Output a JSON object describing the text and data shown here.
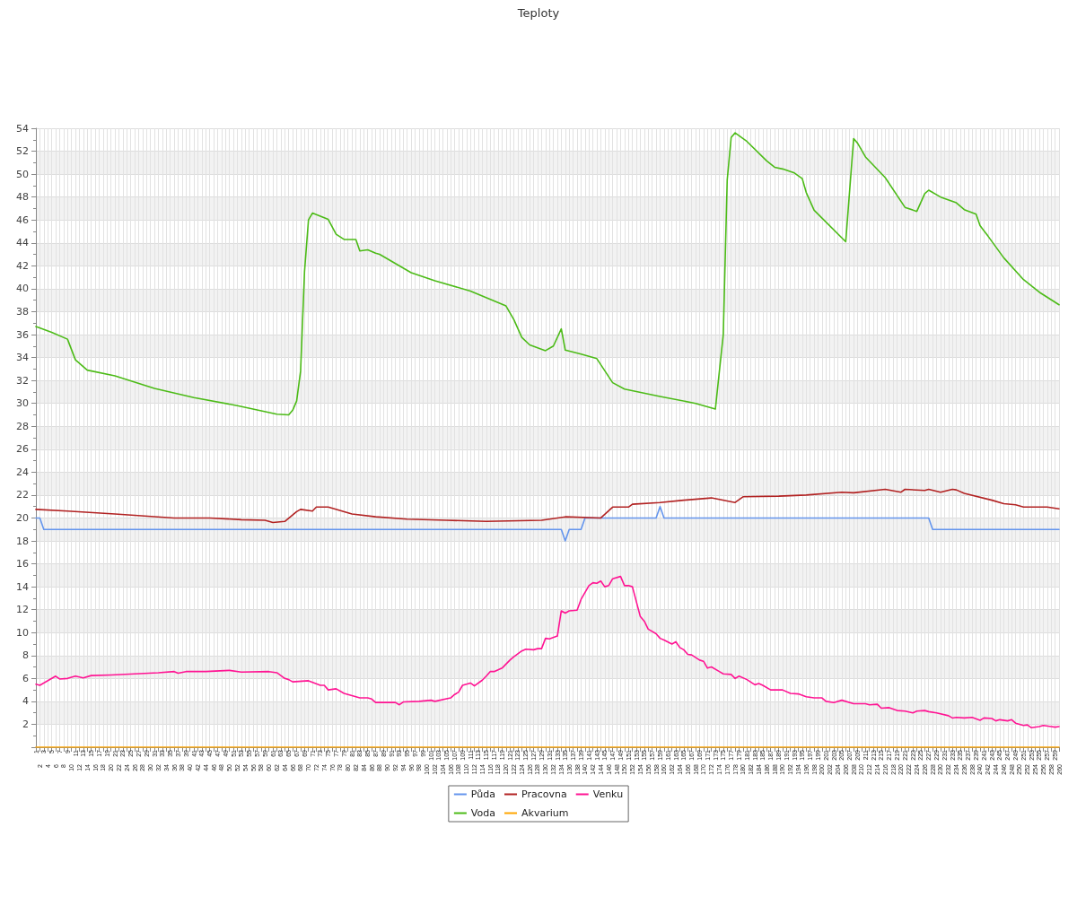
{
  "chart_data": {
    "type": "line",
    "title": "Teploty",
    "categories": [
      "1",
      "2",
      "3",
      "4",
      "5",
      "6",
      "7",
      "8",
      "9",
      "10",
      "11",
      "12",
      "13",
      "14",
      "15",
      "16",
      "17",
      "18",
      "19",
      "20",
      "21",
      "22",
      "23",
      "24",
      "25",
      "26",
      "27",
      "28",
      "29",
      "30",
      "31",
      "32",
      "33",
      "34",
      "35",
      "36",
      "37",
      "38",
      "39",
      "40",
      "41",
      "42",
      "43",
      "44",
      "45",
      "46",
      "47",
      "48",
      "49",
      "50",
      "51",
      "52",
      "53",
      "54",
      "55",
      "56",
      "57",
      "58",
      "59",
      "60",
      "61",
      "62",
      "63",
      "64",
      "65",
      "66",
      "67",
      "68",
      "69",
      "70",
      "71",
      "72",
      "73",
      "74",
      "75",
      "76",
      "77",
      "78",
      "79",
      "80",
      "81",
      "82",
      "83",
      "84",
      "85",
      "86",
      "87",
      "88",
      "89",
      "90",
      "91",
      "92",
      "93",
      "94",
      "95",
      "96",
      "97",
      "98",
      "99",
      "100",
      "101",
      "102",
      "103",
      "104",
      "105",
      "106",
      "107",
      "108",
      "109",
      "110",
      "111",
      "112",
      "113",
      "114",
      "115",
      "116",
      "117",
      "118",
      "119",
      "120",
      "121",
      "122",
      "123",
      "124",
      "125",
      "126",
      "127",
      "128",
      "129",
      "130",
      "131",
      "132",
      "133",
      "134",
      "135",
      "136",
      "137",
      "138",
      "139",
      "140",
      "141",
      "142",
      "143",
      "144",
      "145",
      "146",
      "147",
      "148",
      "149",
      "150",
      "151",
      "152",
      "153",
      "154",
      "155",
      "156",
      "157",
      "158",
      "159",
      "160",
      "161",
      "162",
      "163",
      "164",
      "165",
      "166",
      "167",
      "168",
      "169",
      "170",
      "171",
      "172",
      "173",
      "174",
      "175",
      "176",
      "177",
      "178",
      "179",
      "180",
      "181",
      "182",
      "183",
      "184",
      "185",
      "186",
      "187",
      "188",
      "189",
      "190",
      "191",
      "192",
      "193",
      "194",
      "195",
      "196",
      "197",
      "198",
      "199",
      "200",
      "201",
      "202",
      "203",
      "204",
      "205",
      "206",
      "207",
      "208",
      "209",
      "210",
      "211",
      "212",
      "213",
      "214",
      "215",
      "216",
      "217",
      "218",
      "219",
      "220",
      "221",
      "222",
      "223",
      "224",
      "225",
      "226",
      "227",
      "228",
      "229",
      "230",
      "231",
      "232",
      "233",
      "234",
      "235",
      "236",
      "237",
      "238",
      "239",
      "240",
      "241",
      "242",
      "243",
      "244",
      "245",
      "246",
      "247",
      "248",
      "249",
      "250",
      "251",
      "252",
      "253",
      "254",
      "255",
      "256",
      "257",
      "258",
      "259",
      "260"
    ],
    "series": [
      {
        "name": "Půda",
        "color": "#6495ed",
        "x": [
          "1",
          "2",
          "3",
          "134",
          "135",
          "136",
          "139",
          "140",
          "158",
          "159",
          "160",
          "227",
          "228",
          "260"
        ],
        "values": [
          20,
          20,
          19,
          19,
          18,
          19,
          19,
          20,
          20,
          21,
          20,
          20,
          19,
          19
        ]
      },
      {
        "name": "Pracovna",
        "color": "#b22222",
        "x": [
          "1",
          "9",
          "21",
          "36",
          "45",
          "53",
          "59",
          "61",
          "64",
          "67",
          "68",
          "71",
          "72",
          "75",
          "81",
          "87",
          "95",
          "105",
          "115",
          "129",
          "135",
          "144",
          "147",
          "151",
          "152",
          "159",
          "165",
          "172",
          "178",
          "180",
          "189",
          "196",
          "205",
          "208",
          "216",
          "220",
          "221",
          "226",
          "227",
          "230",
          "233",
          "234",
          "236",
          "243",
          "246",
          "249",
          "251",
          "257",
          "260"
        ],
        "values": [
          20.75,
          20.6,
          20.35,
          20.0,
          20.0,
          19.85,
          19.8,
          19.6,
          19.7,
          20.55,
          20.75,
          20.6,
          20.95,
          20.95,
          20.35,
          20.1,
          19.9,
          19.8,
          19.7,
          19.8,
          20.1,
          20.0,
          20.95,
          20.95,
          21.2,
          21.35,
          21.55,
          21.75,
          21.35,
          21.85,
          21.9,
          22.0,
          22.25,
          22.2,
          22.5,
          22.25,
          22.5,
          22.4,
          22.5,
          22.25,
          22.5,
          22.45,
          22.15,
          21.55,
          21.25,
          21.15,
          20.95,
          20.95,
          20.8
        ]
      },
      {
        "name": "Venku",
        "color": "#ff1493",
        "x": [
          "1",
          "2",
          "6",
          "7",
          "9",
          "11",
          "13",
          "15",
          "20",
          "26",
          "32",
          "36",
          "37",
          "39",
          "44",
          "50",
          "53",
          "60",
          "62",
          "64",
          "65",
          "66",
          "70",
          "73",
          "74",
          "75",
          "77",
          "79",
          "82",
          "83",
          "85",
          "86",
          "87",
          "89",
          "92",
          "93",
          "94",
          "98",
          "101",
          "102",
          "106",
          "107",
          "108",
          "109",
          "111",
          "112",
          "114",
          "115",
          "116",
          "117",
          "119",
          "121",
          "122",
          "124",
          "125",
          "127",
          "128",
          "129",
          "130",
          "131",
          "133",
          "134",
          "135",
          "136",
          "138",
          "139",
          "141",
          "142",
          "143",
          "144",
          "145",
          "146",
          "147",
          "149",
          "150",
          "151",
          "152",
          "154",
          "155",
          "156",
          "158",
          "159",
          "160",
          "162",
          "163",
          "164",
          "165",
          "166",
          "167",
          "169",
          "170",
          "171",
          "172",
          "174",
          "175",
          "177",
          "178",
          "179",
          "181",
          "183",
          "184",
          "185",
          "187",
          "190",
          "192",
          "194",
          "196",
          "198",
          "200",
          "201",
          "203",
          "205",
          "208",
          "211",
          "212",
          "214",
          "215",
          "217",
          "219",
          "221",
          "223",
          "224",
          "226",
          "227",
          "229",
          "232",
          "233",
          "234",
          "236",
          "238",
          "240",
          "241",
          "243",
          "244",
          "245",
          "247",
          "248",
          "249",
          "251",
          "252",
          "253",
          "255",
          "256",
          "258",
          "259",
          "260"
        ],
        "values": [
          5.5,
          5.4,
          6.2,
          5.95,
          6.0,
          6.2,
          6.05,
          6.25,
          6.3,
          6.4,
          6.5,
          6.6,
          6.45,
          6.6,
          6.6,
          6.7,
          6.55,
          6.6,
          6.5,
          6.0,
          5.9,
          5.7,
          5.8,
          5.4,
          5.4,
          5.0,
          5.1,
          4.7,
          4.4,
          4.3,
          4.3,
          4.2,
          3.9,
          3.9,
          3.9,
          3.7,
          3.95,
          4.0,
          4.1,
          4.0,
          4.3,
          4.6,
          4.8,
          5.4,
          5.6,
          5.35,
          5.85,
          6.2,
          6.6,
          6.6,
          6.9,
          7.6,
          7.9,
          8.4,
          8.55,
          8.5,
          8.6,
          8.6,
          9.5,
          9.45,
          9.7,
          11.9,
          11.7,
          11.9,
          11.95,
          12.9,
          14.1,
          14.35,
          14.3,
          14.5,
          14.0,
          14.1,
          14.7,
          14.9,
          14.1,
          14.1,
          14.0,
          11.4,
          11.0,
          10.3,
          9.9,
          9.5,
          9.35,
          9.0,
          9.2,
          8.7,
          8.5,
          8.1,
          8.05,
          7.6,
          7.5,
          6.9,
          7.0,
          6.6,
          6.4,
          6.35,
          6.0,
          6.2,
          5.9,
          5.45,
          5.55,
          5.4,
          5.0,
          5.0,
          4.7,
          4.65,
          4.4,
          4.3,
          4.3,
          4.0,
          3.9,
          4.1,
          3.8,
          3.8,
          3.7,
          3.75,
          3.4,
          3.45,
          3.2,
          3.15,
          3.0,
          3.15,
          3.2,
          3.1,
          3.0,
          2.75,
          2.55,
          2.6,
          2.55,
          2.6,
          2.35,
          2.55,
          2.5,
          2.3,
          2.4,
          2.3,
          2.4,
          2.1,
          1.9,
          1.95,
          1.7,
          1.8,
          1.9,
          1.8,
          1.75,
          1.8
        ]
      },
      {
        "name": "Voda",
        "color": "#4cbb17",
        "x": [
          "1",
          "5",
          "9",
          "11",
          "14",
          "21",
          "31",
          "41",
          "52",
          "62",
          "65",
          "66",
          "67",
          "68",
          "69",
          "70",
          "71",
          "75",
          "77",
          "79",
          "82",
          "83",
          "85",
          "87",
          "88",
          "96",
          "102",
          "111",
          "120",
          "122",
          "124",
          "126",
          "130",
          "132",
          "134",
          "135",
          "139",
          "143",
          "147",
          "150",
          "159",
          "168",
          "173",
          "175",
          "176",
          "177",
          "178",
          "181",
          "186",
          "188",
          "190",
          "193",
          "195",
          "196",
          "198",
          "206",
          "208",
          "209",
          "211",
          "216",
          "221",
          "224",
          "226",
          "227",
          "230",
          "234",
          "236",
          "239",
          "240",
          "242",
          "246",
          "251",
          "255",
          "260"
        ],
        "values": [
          36.7,
          36.2,
          35.6,
          33.8,
          32.9,
          32.4,
          31.3,
          30.5,
          29.8,
          29.05,
          29.0,
          29.4,
          30.2,
          32.8,
          41.5,
          46.0,
          46.6,
          46.05,
          44.75,
          44.3,
          44.3,
          43.3,
          43.4,
          43.1,
          43.0,
          41.4,
          40.7,
          39.8,
          38.5,
          37.3,
          35.75,
          35.1,
          34.6,
          35.0,
          36.5,
          34.65,
          34.3,
          33.9,
          31.8,
          31.25,
          30.6,
          30.0,
          29.5,
          36.0,
          49.5,
          53.2,
          53.6,
          52.85,
          51.15,
          50.6,
          50.45,
          50.1,
          49.6,
          48.4,
          46.85,
          44.1,
          53.1,
          52.7,
          51.5,
          49.7,
          47.1,
          46.75,
          48.3,
          48.6,
          48.0,
          47.5,
          46.9,
          46.5,
          45.5,
          44.6,
          42.7,
          40.8,
          39.7,
          38.6
        ]
      },
      {
        "name": "Akvarium",
        "color": "#ffa500",
        "x": [
          "1",
          "260"
        ],
        "values": [
          0,
          0
        ]
      }
    ],
    "ylim": [
      0,
      54
    ],
    "yticks": [
      {
        "value": 0,
        "label": null
      },
      2,
      4,
      6,
      8,
      10,
      12,
      14,
      16,
      18,
      20,
      22,
      24,
      26,
      28,
      30,
      32,
      34,
      36,
      38,
      40,
      42,
      44,
      46,
      48,
      50,
      52,
      54
    ],
    "grid": true,
    "legend": "bottom",
    "marker": "none",
    "line_style": "solid"
  }
}
